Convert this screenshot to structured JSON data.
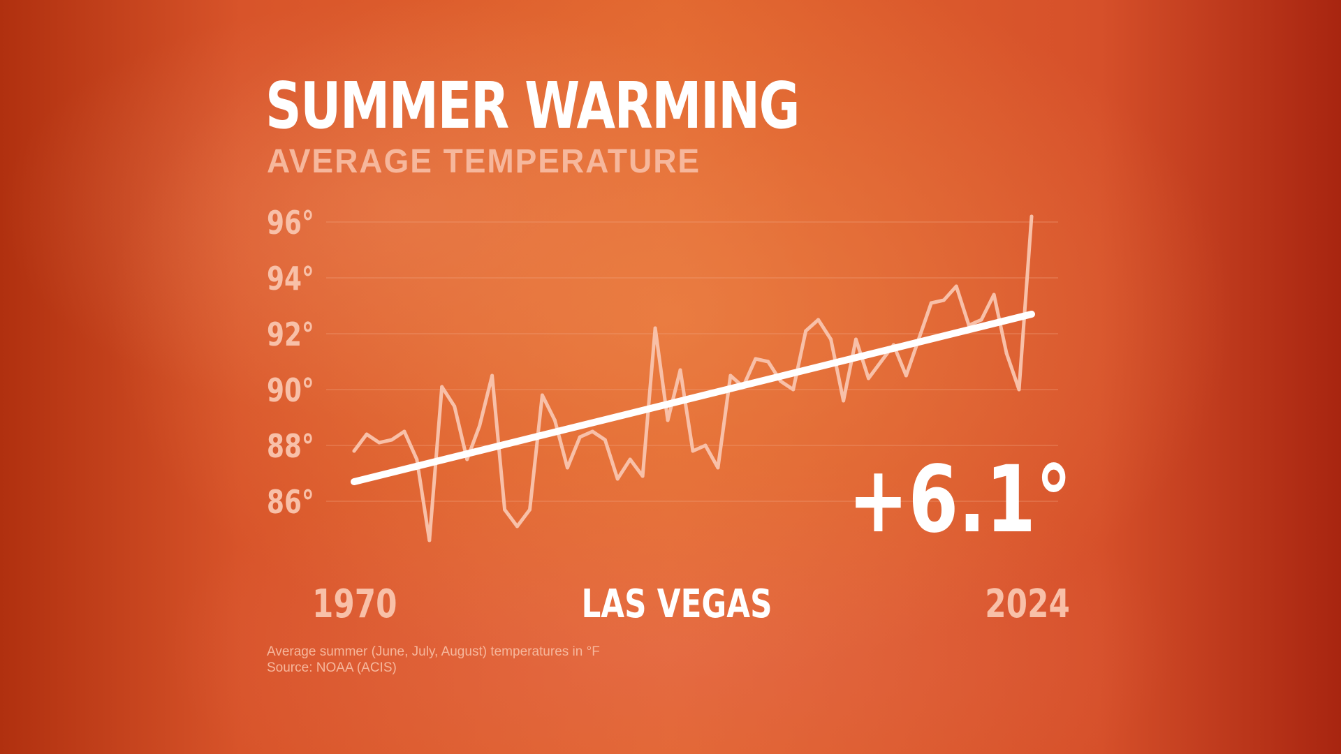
{
  "header": {
    "title": "SUMMER WARMING",
    "subtitle": "AVERAGE TEMPERATURE"
  },
  "labels": {
    "start_year": "1970",
    "end_year": "2024",
    "location": "LAS VEGAS",
    "change": "+6.1°"
  },
  "footnote": {
    "line1": "Average summer (June, July, August) temperatures in °F",
    "line2": "Source: NOAA (ACIS)"
  },
  "colors": {
    "background": "#e2672f",
    "series_line": "#f8c0a8",
    "trend_line": "#ffffff",
    "label_text": "#f8c0a8"
  },
  "chart_data": {
    "type": "line",
    "title": "SUMMER WARMING",
    "subtitle": "AVERAGE TEMPERATURE",
    "xlabel": "",
    "ylabel": "",
    "x_start_label": "1970",
    "x_end_label": "2024",
    "xlim": [
      1970,
      2024
    ],
    "ylim": [
      85,
      96
    ],
    "y_ticks": [
      86,
      88,
      90,
      92,
      94,
      96
    ],
    "y_tick_labels": [
      "86°",
      "88°",
      "90°",
      "92°",
      "94°",
      "96°"
    ],
    "grid": true,
    "annotation": "+6.1°",
    "series": [
      {
        "type": "line",
        "x": [
          1970,
          1971,
          1972,
          1973,
          1974,
          1975,
          1976,
          1977,
          1978,
          1979,
          1980,
          1981,
          1982,
          1983,
          1984,
          1985,
          1986,
          1987,
          1988,
          1989,
          1990,
          1991,
          1992,
          1993,
          1994,
          1995,
          1996,
          1997,
          1998,
          1999,
          2000,
          2001,
          2002,
          2003,
          2004,
          2005,
          2006,
          2007,
          2008,
          2009,
          2010,
          2011,
          2012,
          2013,
          2014,
          2015,
          2016,
          2017,
          2018,
          2019,
          2020,
          2021,
          2022,
          2023,
          2024
        ],
        "values": [
          87.8,
          88.4,
          88.1,
          88.2,
          88.5,
          87.5,
          84.6,
          90.1,
          89.4,
          87.5,
          88.7,
          90.5,
          85.7,
          85.1,
          85.7,
          89.8,
          88.9,
          87.2,
          88.3,
          88.5,
          88.2,
          86.8,
          87.5,
          86.9,
          92.2,
          88.9,
          90.7,
          87.8,
          88.0,
          87.2,
          90.5,
          90.1,
          91.1,
          91.0,
          90.3,
          90.0,
          92.1,
          92.5,
          91.8,
          89.6,
          91.8,
          90.4,
          91.0,
          91.6,
          90.5,
          91.8,
          93.1,
          93.2,
          93.7,
          92.3,
          92.5,
          93.4,
          91.3,
          90.0,
          96.2
        ]
      },
      {
        "type": "trend",
        "x": [
          1970,
          2024
        ],
        "values": [
          86.7,
          92.7
        ]
      }
    ]
  }
}
